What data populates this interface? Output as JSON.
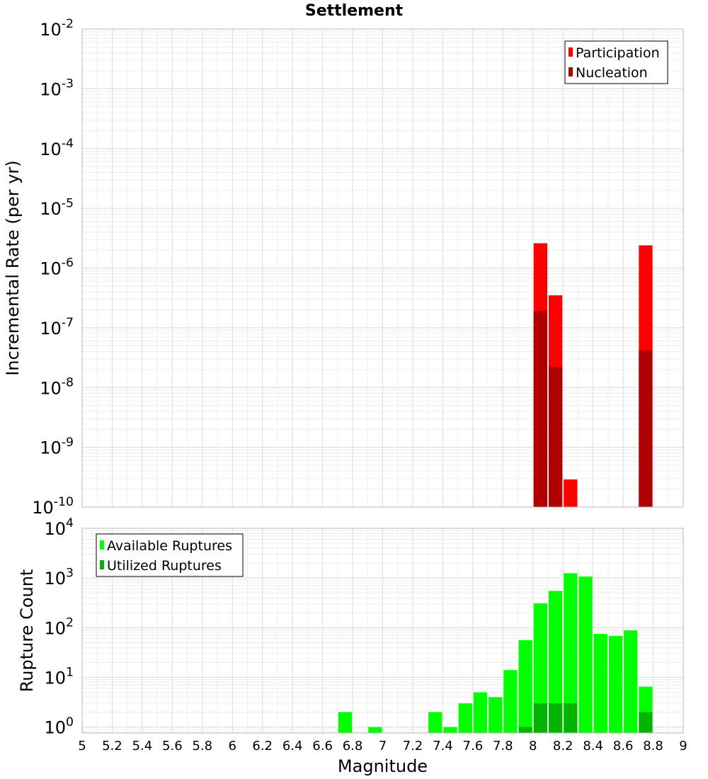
{
  "chart_data": [
    {
      "type": "bar",
      "title": "Settlement",
      "xlabel": "",
      "ylabel": "Incremental Rate (per yr)",
      "yscale": "log",
      "ylim": [
        1e-10,
        0.01
      ],
      "xlim": [
        5,
        9
      ],
      "bin_width": 0.1,
      "grid": true,
      "legend_position": "top-right",
      "y_ticks": [
        {
          "base": "10",
          "exp": "-10"
        },
        {
          "base": "10",
          "exp": "-9"
        },
        {
          "base": "10",
          "exp": "-8"
        },
        {
          "base": "10",
          "exp": "-7"
        },
        {
          "base": "10",
          "exp": "-6"
        },
        {
          "base": "10",
          "exp": "-5"
        },
        {
          "base": "10",
          "exp": "-4"
        },
        {
          "base": "10",
          "exp": "-3"
        },
        {
          "base": "10",
          "exp": "-2"
        }
      ],
      "series": [
        {
          "name": "Participation",
          "color": "#ff0000",
          "points": [
            {
              "x": 8.05,
              "y": 2.6e-06
            },
            {
              "x": 8.15,
              "y": 3.5e-07
            },
            {
              "x": 8.25,
              "y": 2.9e-10
            },
            {
              "x": 8.75,
              "y": 2.4e-06
            }
          ]
        },
        {
          "name": "Nucleation",
          "color": "#b00000",
          "points": [
            {
              "x": 8.05,
              "y": 1.9e-07
            },
            {
              "x": 8.15,
              "y": 2.2e-08
            },
            {
              "x": 8.75,
              "y": 4.2e-08
            }
          ]
        }
      ]
    },
    {
      "type": "bar",
      "title": "",
      "xlabel": "Magnitude",
      "ylabel": "Rupture Count",
      "yscale": "log",
      "ylim": [
        0.76,
        10000
      ],
      "xlim": [
        5,
        9
      ],
      "bin_width": 0.1,
      "grid": true,
      "legend_position": "top-left",
      "x_tick_labels": [
        "5",
        "5.2",
        "5.4",
        "5.6",
        "5.8",
        "6",
        "6.2",
        "6.4",
        "6.6",
        "6.8",
        "7",
        "7.2",
        "7.4",
        "7.6",
        "7.8",
        "8",
        "8.2",
        "8.4",
        "8.6",
        "8.8",
        "9"
      ],
      "y_ticks": [
        {
          "base": "10",
          "exp": "0"
        },
        {
          "base": "10",
          "exp": "1"
        },
        {
          "base": "10",
          "exp": "2"
        },
        {
          "base": "10",
          "exp": "3"
        },
        {
          "base": "10",
          "exp": "4"
        }
      ],
      "series": [
        {
          "name": "Available Ruptures",
          "color": "#00ff00",
          "points": [
            {
              "x": 6.75,
              "y": 2
            },
            {
              "x": 6.95,
              "y": 1
            },
            {
              "x": 7.35,
              "y": 2
            },
            {
              "x": 7.45,
              "y": 1
            },
            {
              "x": 7.55,
              "y": 3
            },
            {
              "x": 7.65,
              "y": 5
            },
            {
              "x": 7.75,
              "y": 4
            },
            {
              "x": 7.85,
              "y": 14
            },
            {
              "x": 7.95,
              "y": 56
            },
            {
              "x": 8.05,
              "y": 310
            },
            {
              "x": 8.15,
              "y": 550
            },
            {
              "x": 8.25,
              "y": 1250
            },
            {
              "x": 8.35,
              "y": 1070
            },
            {
              "x": 8.45,
              "y": 75
            },
            {
              "x": 8.55,
              "y": 68
            },
            {
              "x": 8.65,
              "y": 88
            },
            {
              "x": 8.75,
              "y": 6.5
            }
          ]
        },
        {
          "name": "Utilized Ruptures",
          "color": "#00b400",
          "points": [
            {
              "x": 7.95,
              "y": 1
            },
            {
              "x": 8.05,
              "y": 3
            },
            {
              "x": 8.15,
              "y": 3
            },
            {
              "x": 8.25,
              "y": 3
            },
            {
              "x": 8.75,
              "y": 2
            }
          ]
        }
      ]
    }
  ]
}
